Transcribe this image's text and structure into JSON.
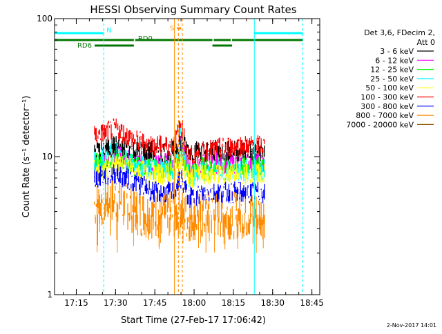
{
  "chart_data": {
    "type": "line",
    "title": "HESSI Observing Summary Count Rates",
    "xlabel": "Start Time (27-Feb-17 17:06:42)",
    "ylabel": "Count Rate (s⁻¹ detector⁻¹)",
    "y_scale": "log",
    "ylim": [
      1,
      100
    ],
    "xlim": [
      "17:06:42",
      "18:48:00"
    ],
    "x_ticks": [
      "17:15",
      "17:30",
      "17:45",
      "18:00",
      "18:15",
      "18:30",
      "18:45"
    ],
    "y_ticks": [
      "1",
      "10",
      "100"
    ],
    "legend_header": [
      "Det 3,6, FDecim 2,",
      "Att 0"
    ],
    "legend_position": "top-right",
    "series": [
      {
        "name": "3 - 6 keV",
        "color": "#000000",
        "x": [
          "17:22",
          "17:30",
          "17:38",
          "17:45",
          "17:52",
          "17:55",
          "17:58",
          "18:05",
          "18:15",
          "18:27"
        ],
        "y": [
          11,
          12,
          11,
          11,
          11,
          13,
          11,
          11,
          11,
          11
        ]
      },
      {
        "name": "6 - 12 keV",
        "color": "#ff00ff",
        "x": [
          "17:22",
          "17:30",
          "17:38",
          "17:45",
          "17:52",
          "17:55",
          "17:58",
          "18:05",
          "18:15",
          "18:27"
        ],
        "y": [
          9,
          11,
          9,
          9,
          9,
          12,
          8,
          9,
          9,
          9
        ]
      },
      {
        "name": "12 - 25 keV",
        "color": "#00ff00",
        "x": [
          "17:22",
          "17:30",
          "17:38",
          "17:45",
          "17:52",
          "17:55",
          "17:58",
          "18:05",
          "18:15",
          "18:27"
        ],
        "y": [
          9,
          10,
          8.5,
          8.5,
          8.5,
          11,
          8,
          8.5,
          8.5,
          8.5
        ]
      },
      {
        "name": "25 - 50 keV",
        "color": "#00ffff",
        "x": [
          "17:22",
          "17:30",
          "17:38",
          "17:45",
          "17:52",
          "17:55",
          "17:58",
          "18:05",
          "18:15",
          "18:27"
        ],
        "y": [
          9.5,
          11,
          9,
          8,
          8,
          14,
          7,
          8,
          8,
          8
        ]
      },
      {
        "name": "50 - 100 keV",
        "color": "#ffff00",
        "x": [
          "17:22",
          "17:30",
          "17:38",
          "17:45",
          "17:52",
          "17:55",
          "17:58",
          "18:05",
          "18:15",
          "18:27"
        ],
        "y": [
          8,
          9,
          8,
          7.5,
          7.5,
          9,
          7,
          7.5,
          7.5,
          7.5
        ]
      },
      {
        "name": "100 - 300 keV",
        "color": "#ff0000",
        "x": [
          "17:22",
          "17:30",
          "17:38",
          "17:45",
          "17:52",
          "17:55",
          "17:58",
          "18:05",
          "18:15",
          "18:27"
        ],
        "y": [
          14,
          16,
          13,
          12,
          12,
          17,
          10,
          11,
          12,
          12
        ]
      },
      {
        "name": "300 - 800 keV",
        "color": "#0000ff",
        "x": [
          "17:22",
          "17:30",
          "17:38",
          "17:45",
          "17:52",
          "17:55",
          "17:58",
          "18:05",
          "18:15",
          "18:27"
        ],
        "y": [
          7,
          7.5,
          6.5,
          5.5,
          5.5,
          7,
          5,
          5.5,
          5.5,
          5.5
        ]
      },
      {
        "name": "800 - 7000 keV",
        "color": "#ff8c00",
        "x": [
          "17:22",
          "17:30",
          "17:38",
          "17:45",
          "17:52",
          "17:55",
          "17:58",
          "18:05",
          "18:15",
          "18:27"
        ],
        "y": [
          4.5,
          5,
          4,
          3.8,
          3.8,
          4,
          3.6,
          3.8,
          3.8,
          3.8
        ]
      },
      {
        "name": "7000 - 20000 keV",
        "color": "#8b5a00",
        "x": [],
        "y": []
      }
    ],
    "vertical_markers": [
      {
        "x": "17:06:42",
        "style": "solid",
        "color": "#00ffff"
      },
      {
        "x": "17:25:30",
        "style": "dashed",
        "color": "#00ffff"
      },
      {
        "x": "18:23:00",
        "style": "solid",
        "color": "#00ffff"
      },
      {
        "x": "18:41:30",
        "style": "dashed",
        "color": "#00ffff"
      },
      {
        "x": "17:52:30",
        "style": "solid",
        "color": "#ff8c00"
      },
      {
        "x": "17:54:00",
        "style": "dashed",
        "color": "#ff8c00"
      },
      {
        "x": "17:55:30",
        "style": "dashed",
        "color": "#ff8c00"
      }
    ],
    "status_bars": [
      {
        "label": "N",
        "color": "#00ffff",
        "label_color": "#00ffff",
        "segments": [
          [
            "17:06:42",
            "17:25:30"
          ],
          [
            "18:23:00",
            "18:41:30"
          ]
        ]
      },
      {
        "label": "RD0",
        "color": "#007700",
        "label_color": "#007700",
        "segments": [
          [
            "17:06:42",
            "17:37:00"
          ],
          [
            "17:37:30",
            "18:07:00"
          ],
          [
            "18:07:30",
            "18:14:00"
          ],
          [
            "18:14:30",
            "18:41:30"
          ]
        ]
      },
      {
        "label": "RD6",
        "color": "#007700",
        "label_color": "#007700",
        "segments": [
          [
            "17:22:00",
            "17:37:00"
          ],
          [
            "18:07:00",
            "18:14:30"
          ]
        ]
      },
      {
        "label": "S",
        "color": "#ff8c00",
        "label_color": "#ff8c00",
        "segments": [
          [
            "17:53:30",
            "17:55:00"
          ]
        ]
      }
    ]
  },
  "footer_date": "2-Nov-2017 14:01"
}
